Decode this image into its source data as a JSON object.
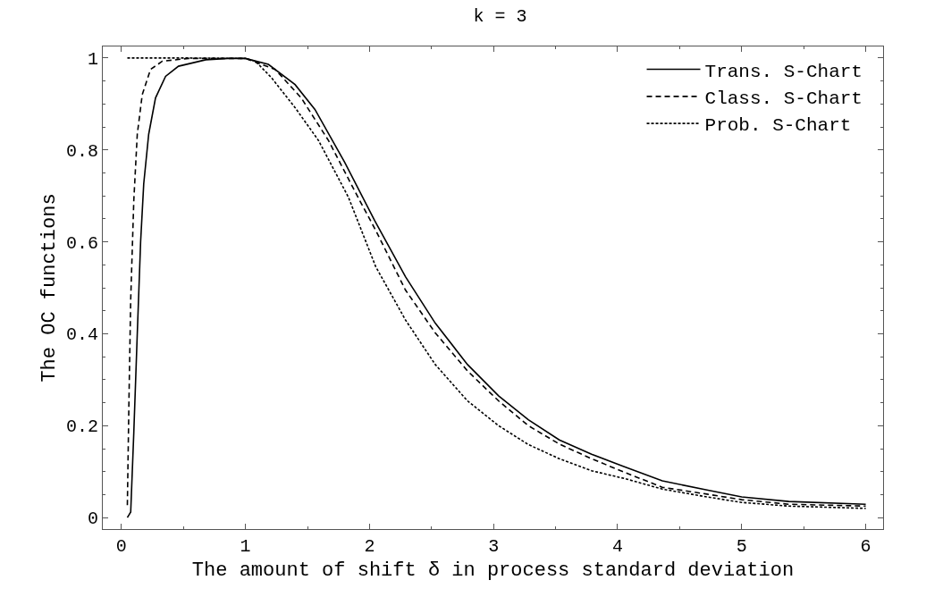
{
  "chart_data": {
    "type": "line",
    "title": "k = 3",
    "xlabel": "The amount of shift δ in process standard deviation",
    "ylabel": "The OC functions",
    "xlim": [
      -0.15,
      6.14
    ],
    "ylim": [
      -0.025,
      1.025
    ],
    "xticks": [
      0,
      1,
      2,
      3,
      4,
      5,
      6
    ],
    "yticks": [
      0,
      0.2,
      0.4,
      0.6,
      0.8,
      1
    ],
    "grid": false,
    "legend": "top right",
    "marker": "none",
    "series": [
      {
        "name": "Trans. S-Chart",
        "color": "#000000",
        "line_style": "solid",
        "x": [
          0.048,
          0.075,
          0.1,
          0.128,
          0.155,
          0.18,
          0.22,
          0.275,
          0.356,
          0.46,
          0.68,
          0.86,
          1.0,
          1.185,
          1.4,
          1.56,
          1.8,
          2.04,
          2.29,
          2.53,
          2.79,
          3.04,
          3.28,
          3.53,
          3.79,
          4.04,
          4.36,
          4.72,
          5.0,
          5.38,
          6.0
        ],
        "values": [
          0,
          0.012,
          0.185,
          0.4,
          0.6,
          0.726,
          0.834,
          0.913,
          0.96,
          0.982,
          0.996,
          0.999,
          0.999,
          0.986,
          0.942,
          0.888,
          0.773,
          0.647,
          0.524,
          0.423,
          0.333,
          0.265,
          0.213,
          0.169,
          0.138,
          0.112,
          0.08,
          0.06,
          0.045,
          0.035,
          0.029
        ]
      },
      {
        "name": "Class. S-Chart",
        "color": "#000000",
        "line_style": "dashed",
        "x": [
          0.048,
          0.061,
          0.075,
          0.1,
          0.128,
          0.168,
          0.235,
          0.33,
          0.54,
          1.0,
          1.24,
          1.45,
          1.67,
          1.907,
          2.05,
          2.29,
          2.53,
          2.79,
          3.04,
          3.28,
          3.53,
          3.79,
          4.07,
          4.36,
          4.72,
          5.0,
          5.38,
          6.0
        ],
        "values": [
          0.027,
          0.257,
          0.474,
          0.69,
          0.834,
          0.92,
          0.975,
          0.993,
          0.999,
          0.999,
          0.975,
          0.913,
          0.82,
          0.697,
          0.625,
          0.495,
          0.402,
          0.319,
          0.254,
          0.2,
          0.16,
          0.128,
          0.097,
          0.066,
          0.051,
          0.039,
          0.029,
          0.025
        ]
      },
      {
        "name": "Prob. S-Chart",
        "color": "#000000",
        "line_style": "dotted",
        "x": [
          0.048,
          0.5,
          1.0,
          1.08,
          1.21,
          1.4,
          1.59,
          1.83,
          2.05,
          2.29,
          2.53,
          2.79,
          3.04,
          3.28,
          3.53,
          3.79,
          4.07,
          4.36,
          4.72,
          5.0,
          5.38,
          6.0
        ],
        "values": [
          1,
          1,
          0.999,
          0.993,
          0.957,
          0.892,
          0.82,
          0.697,
          0.546,
          0.43,
          0.333,
          0.254,
          0.2,
          0.159,
          0.128,
          0.102,
          0.084,
          0.062,
          0.045,
          0.033,
          0.025,
          0.02
        ]
      }
    ]
  }
}
